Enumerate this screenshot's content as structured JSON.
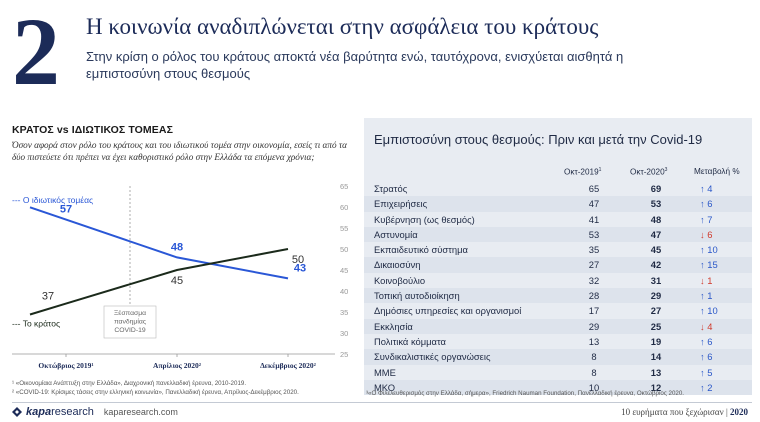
{
  "header": {
    "number": "2",
    "title": "Η κοινωνία αναδιπλώνεται στην ασφάλεια του κράτους",
    "subtitle": "Στην κρίση ο ρόλος του κράτους αποκτά νέα βαρύτητα ενώ, ταυτόχρονα, ενισχύεται αισθητά η εμπιστοσύνη στους θεσμούς"
  },
  "left": {
    "section_title": "ΚΡΑΤΟΣ vs ΙΔΙΩΤΙΚΟΣ ΤΟΜΕΑΣ",
    "question": "Όσον αφορά στον ρόλο του κράτους και του ιδιωτικού τομέα στην οικονομία, εσείς τι από τα δύο πιστεύετε ότι πρέπει να έχει καθοριστικό ρόλο στην Ελλάδα τα επόμενα χρόνια;",
    "footnote1": "¹ «Οικονομίαια Ανάπτυξη στην Ελλάδα», Διαχρονική πανελλαδική έρευνα, 2010-2019.",
    "footnote2": "² «COVID-19: Κρίσιμες τάσεις στην ελληνική κοινωνία», Πανελλαδική έρευνα, Απρίλιος-Δεκέμβριος 2020."
  },
  "chart_data": {
    "type": "line",
    "categories": [
      "Οκτώβριος 2019¹",
      "Απρίλιος 2020²",
      "Δεκέμβριος 2020²"
    ],
    "series": [
      {
        "name": "Ο ιδιωτικός τομέας",
        "values": [
          57,
          48,
          43
        ],
        "color": "#2a57d6"
      },
      {
        "name": "Το κράτος",
        "values": [
          37,
          45,
          50
        ],
        "color": "#1b2a1b"
      }
    ],
    "ylim": [
      25,
      65
    ],
    "yticks": [
      25,
      30,
      35,
      40,
      45,
      50,
      55,
      60,
      65
    ],
    "annotation": "Ξέσπασμα πανδημίας COVID-19",
    "annotation_at": "Ιανουάριος 2020"
  },
  "right": {
    "title": "Εμπιστοσύνη στους θεσμούς: Πριν και μετά την Covid-19",
    "col_oct19": "Οκτ-2019",
    "col_oct19_sup": "1",
    "col_oct20": "Οκτ-2020",
    "col_oct20_sup": "3",
    "col_change": "Μεταβολή %",
    "up_icon": "arrow-up-icon",
    "down_icon": "arrow-down-icon",
    "up_color": "#2a57c8",
    "down_color": "#d0392b",
    "rows": [
      {
        "name": "Στρατός",
        "oct19": "65",
        "oct20": "69",
        "dir": "up",
        "change": "4"
      },
      {
        "name": "Επιχειρήσεις",
        "oct19": "47",
        "oct20": "53",
        "dir": "up",
        "change": "6"
      },
      {
        "name": "Κυβέρνηση (ως θεσμός)",
        "oct19": "41",
        "oct20": "48",
        "dir": "up",
        "change": "7"
      },
      {
        "name": "Αστυνομία",
        "oct19": "53",
        "oct20": "47",
        "dir": "down",
        "change": "6"
      },
      {
        "name": "Εκπαιδευτικό σύστημα",
        "oct19": "35",
        "oct20": "45",
        "dir": "up",
        "change": "10"
      },
      {
        "name": "Δικαιοσύνη",
        "oct19": "27",
        "oct20": "42",
        "dir": "up",
        "change": "15"
      },
      {
        "name": "Κοινοβούλιο",
        "oct19": "32",
        "oct20": "31",
        "dir": "down",
        "change": "1"
      },
      {
        "name": "Τοπική αυτοδιοίκηση",
        "oct19": "28",
        "oct20": "29",
        "dir": "up",
        "change": "1"
      },
      {
        "name": "Δημόσιες υπηρεσίες και οργανισμοί",
        "oct19": "17",
        "oct20": "27",
        "dir": "up",
        "change": "10"
      },
      {
        "name": "Εκκλησία",
        "oct19": "29",
        "oct20": "25",
        "dir": "down",
        "change": "4"
      },
      {
        "name": "Πολιτικά κόμματα",
        "oct19": "13",
        "oct20": "19",
        "dir": "up",
        "change": "6"
      },
      {
        "name": "Συνδικαλιστικές οργανώσεις",
        "oct19": "8",
        "oct20": "14",
        "dir": "up",
        "change": "6"
      },
      {
        "name": "ΜΜΕ",
        "oct19": "8",
        "oct20": "13",
        "dir": "up",
        "change": "5"
      },
      {
        "name": "ΜΚΟ",
        "oct19": "10",
        "oct20": "12",
        "dir": "up",
        "change": "2"
      }
    ],
    "footnote": "³«Ο Φιλελευθερισμός στην Ελλάδα, σήμερα», Friedrich Nauman Foundation, Πανελλαδική έρευνα, Οκτώβριος 2020."
  },
  "footer": {
    "brand_bold": "kapa",
    "brand_rest": "research",
    "url": "kaparesearch.com",
    "right_text": "10 ευρήματα που ξεχώρισαν",
    "year": "2020"
  }
}
